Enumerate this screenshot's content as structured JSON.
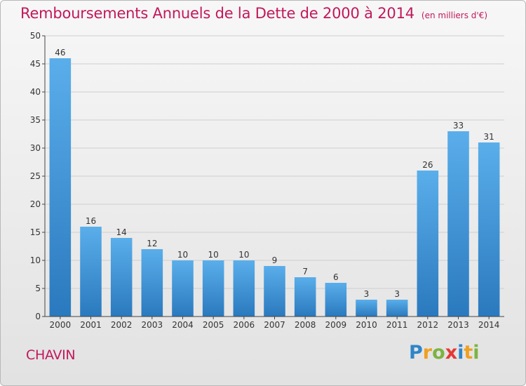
{
  "title": {
    "main": "Remboursements Annuels de la Dette de 2000 à 2014",
    "sub": "(en milliers d'€)"
  },
  "commune": "CHAVIN",
  "logo": {
    "letters": [
      {
        "ch": "P",
        "color": "#2e86c8"
      },
      {
        "ch": "r",
        "color": "#f0a020"
      },
      {
        "ch": "o",
        "color": "#7cb342"
      },
      {
        "ch": "x",
        "color": "#e53935"
      },
      {
        "ch": "i",
        "color": "#2e86c8"
      },
      {
        "ch": "t",
        "color": "#f0a020"
      },
      {
        "ch": "i",
        "color": "#7cb342"
      }
    ]
  },
  "colors": {
    "bar_top": "#5aaeea",
    "bar_bottom": "#2a79be",
    "title": "#c2185b",
    "axis": "#444444",
    "grid": "#cfcfcf"
  },
  "chart_data": {
    "type": "bar",
    "title": "Remboursements Annuels de la Dette de 2000 à 2014",
    "subtitle": "(en milliers d'€)",
    "xlabel": "",
    "ylabel": "",
    "categories": [
      "2000",
      "2001",
      "2002",
      "2003",
      "2004",
      "2005",
      "2006",
      "2007",
      "2008",
      "2009",
      "2010",
      "2011",
      "2012",
      "2013",
      "2014"
    ],
    "values": [
      46,
      16,
      14,
      12,
      10,
      10,
      10,
      9,
      7,
      6,
      3,
      3,
      26,
      33,
      31
    ],
    "ylim": [
      0,
      50
    ],
    "yticks": [
      0,
      5,
      10,
      15,
      20,
      25,
      30,
      35,
      40,
      45,
      50
    ],
    "grid": true,
    "legend": "none"
  }
}
